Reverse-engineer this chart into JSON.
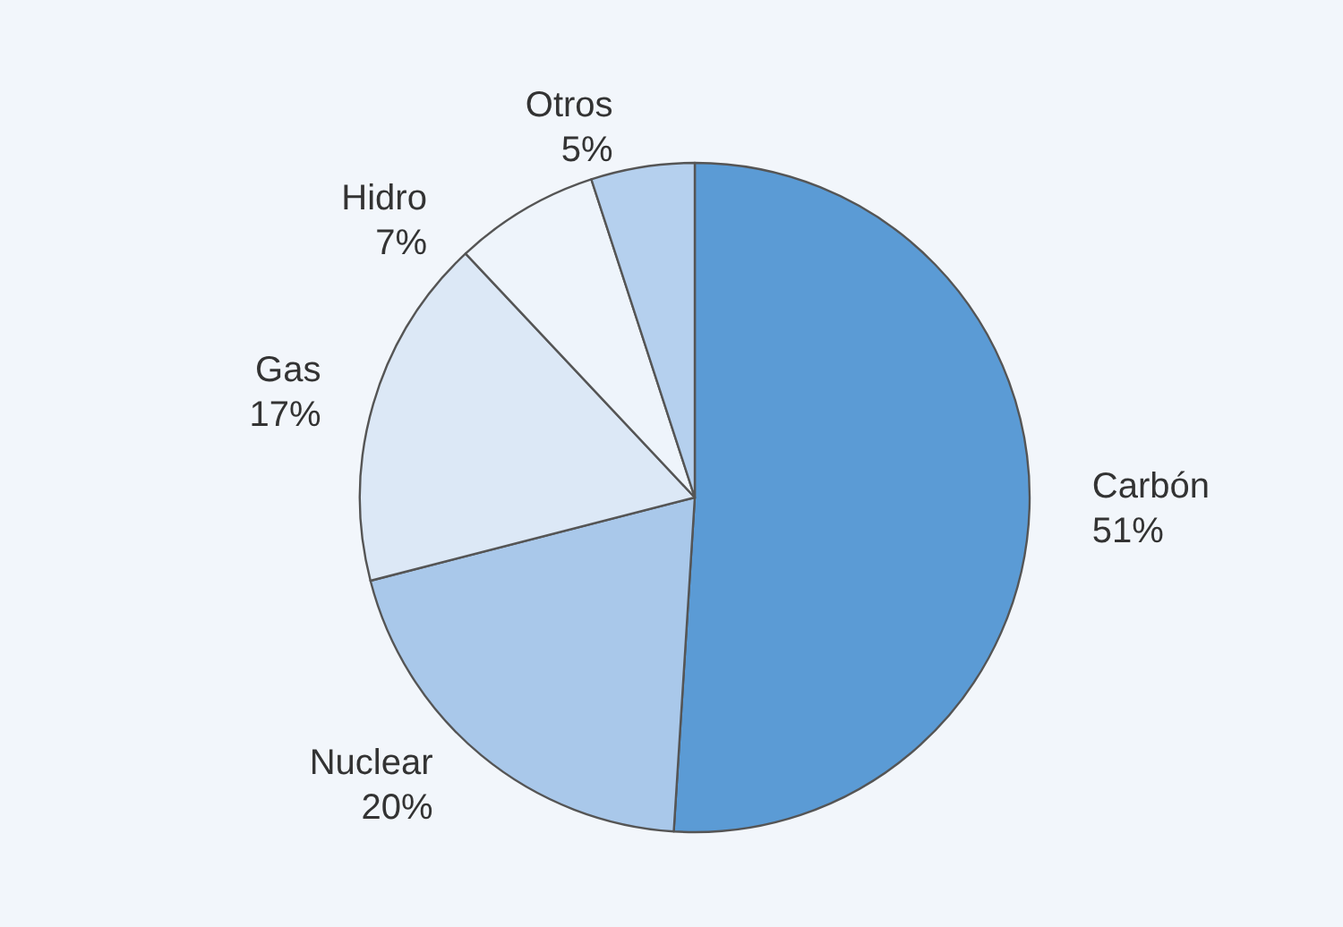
{
  "chart_data": {
    "type": "pie",
    "categories": [
      "Carbón",
      "Nuclear",
      "Gas",
      "Hidro",
      "Otros"
    ],
    "values": [
      51,
      20,
      17,
      7,
      5
    ],
    "value_labels": [
      "51%",
      "20%",
      "17%",
      "7%",
      "5%"
    ],
    "colors": [
      "#5b9bd5",
      "#a9c8ea",
      "#dce8f6",
      "#eef4fb",
      "#b5d0ee"
    ],
    "legend": false
  }
}
